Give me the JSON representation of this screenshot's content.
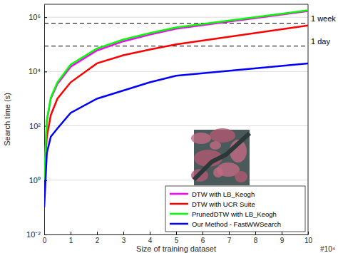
{
  "chart_data": {
    "type": "line",
    "x_label": "Size of training dataset",
    "y_label": "Search time (s)",
    "x_multiplier": "#10⁴",
    "log": "y",
    "grid": true,
    "legend": "lower right",
    "xlim": [
      0,
      10
    ],
    "xticks": [
      0,
      1,
      2,
      3,
      4,
      5,
      6,
      7,
      8,
      9,
      10
    ],
    "ylim": [
      0.01,
      3000000
    ],
    "yticks": [
      {
        "value": 0.01,
        "label": "10⁻²"
      },
      {
        "value": 1,
        "label": "10⁰"
      },
      {
        "value": 100,
        "label": "10²"
      },
      {
        "value": 10000,
        "label": "10⁴"
      },
      {
        "value": 1000000,
        "label": "10⁶"
      }
    ],
    "x": [
      0,
      0.1,
      0.25,
      0.5,
      1,
      2,
      3,
      4,
      5,
      10
    ],
    "series": [
      {
        "name": "DTW with LB_Keogh",
        "color": "#ff00ff",
        "line_style": "solid",
        "values": [
          1,
          150,
          1000,
          3500,
          15000,
          60000,
          130000,
          230000,
          380000,
          1700000
        ]
      },
      {
        "name": "DTW with UCR Suite",
        "color": "#ff0000",
        "line_style": "solid",
        "values": [
          1,
          40,
          250,
          1000,
          4000,
          20000,
          40000,
          65000,
          100000,
          500000
        ]
      },
      {
        "name": "PrunedDTW with LB_Keogh",
        "color": "#00ff00",
        "line_style": "solid",
        "values": [
          1,
          170,
          1100,
          4000,
          18000,
          70000,
          150000,
          260000,
          420000,
          1800000
        ]
      },
      {
        "name": "Our Method - FastWWSearch",
        "color": "#0000ff",
        "line_style": "solid",
        "values": [
          0.1,
          10,
          40,
          80,
          300,
          1000,
          2000,
          4000,
          7000,
          20000
        ]
      }
    ],
    "annotations": [
      {
        "text": "1 week",
        "y": 604800,
        "line_style": "dashed"
      },
      {
        "text": "1 day",
        "y": 86400,
        "line_style": "dashed"
      }
    ]
  }
}
